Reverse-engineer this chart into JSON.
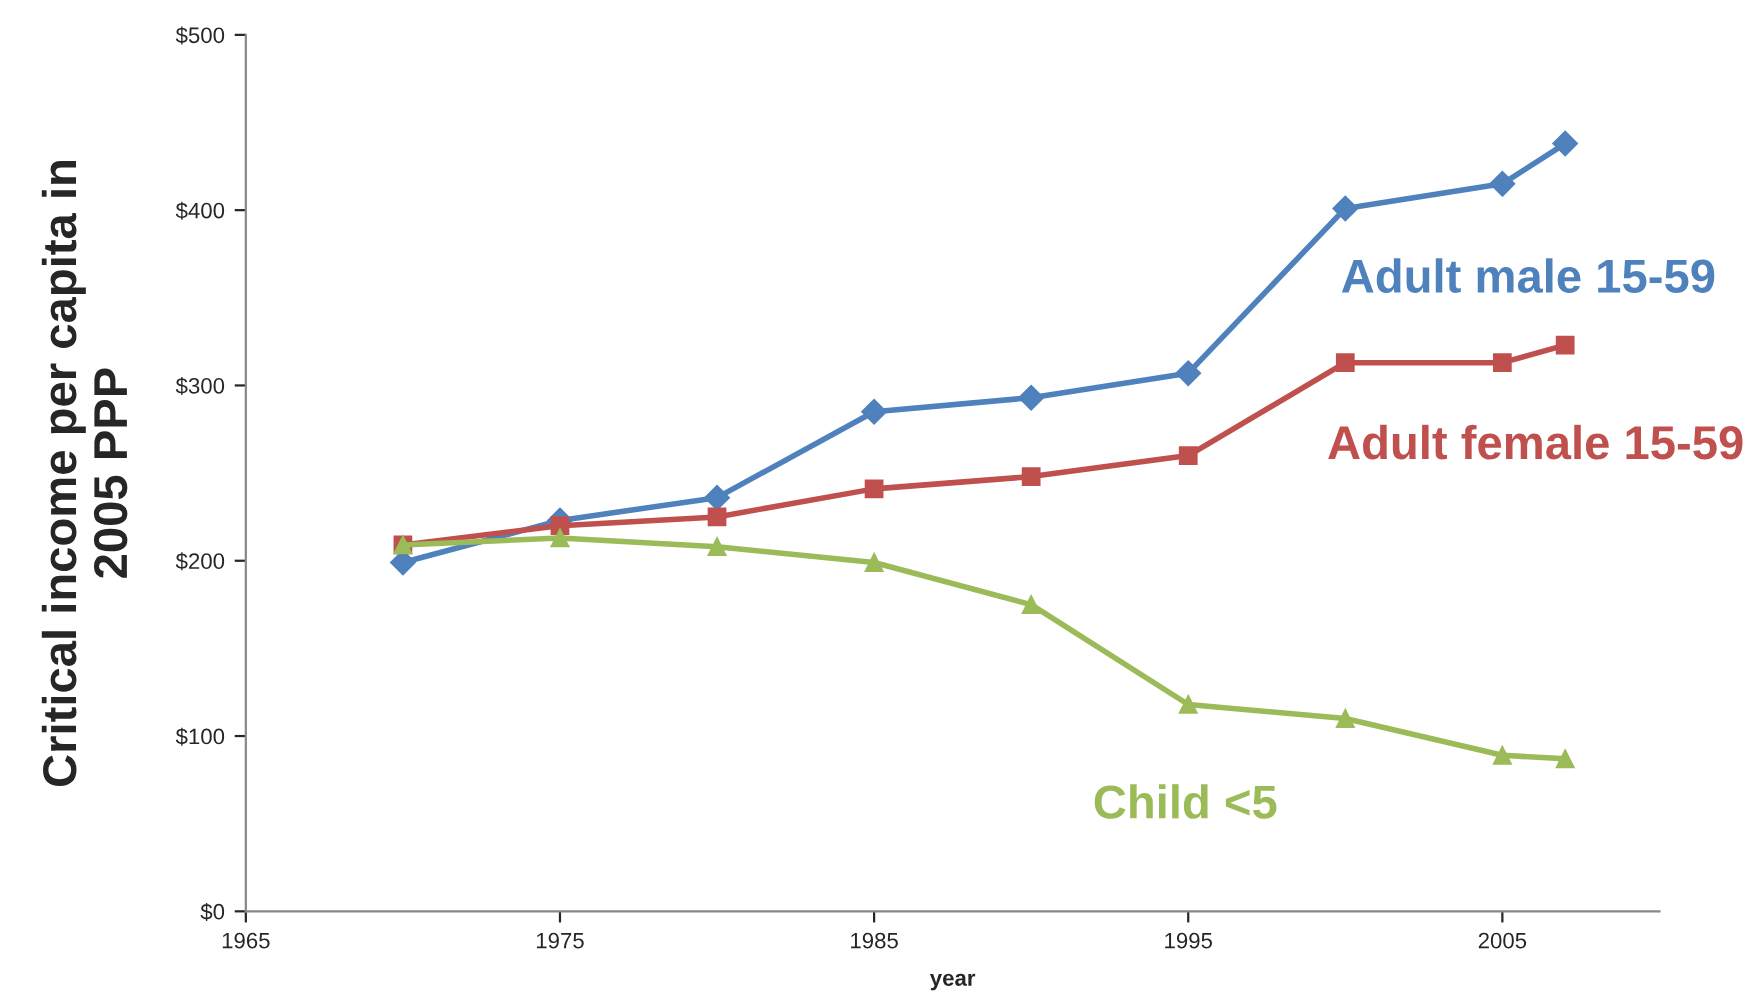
{
  "chart_data": {
    "type": "line",
    "xlabel": "year",
    "ylabel": "Critical income per capita in\n2005 PPP",
    "x": [
      1970,
      1975,
      1980,
      1985,
      1990,
      1995,
      2000,
      2005,
      2007
    ],
    "series": [
      {
        "name": "Adult male 15-59",
        "color": "#4f81bd",
        "marker": "diamond",
        "values": [
          199,
          223,
          236,
          285,
          293,
          307,
          401,
          415,
          438
        ]
      },
      {
        "name": "Adult female 15-59",
        "color": "#c0504d",
        "marker": "square",
        "values": [
          209,
          220,
          225,
          241,
          248,
          260,
          313,
          313,
          323
        ]
      },
      {
        "name": "Child <5",
        "color": "#9bbb59",
        "marker": "triangle",
        "values": [
          209,
          213,
          208,
          199,
          175,
          118,
          110,
          89,
          87
        ]
      }
    ],
    "xlim": [
      1965,
      2010
    ],
    "xticks": [
      1965,
      1975,
      1985,
      1995,
      2005
    ],
    "ylim": [
      0,
      500
    ],
    "yticks": [
      {
        "value": 0,
        "label": "$0"
      },
      {
        "value": 100,
        "label": "$100"
      },
      {
        "value": 200,
        "label": "$200"
      },
      {
        "value": 300,
        "label": "$300"
      },
      {
        "value": 400,
        "label": "$400"
      },
      {
        "value": 500,
        "label": "$500"
      }
    ],
    "grid": false,
    "legend": false,
    "line_style": "solid"
  }
}
